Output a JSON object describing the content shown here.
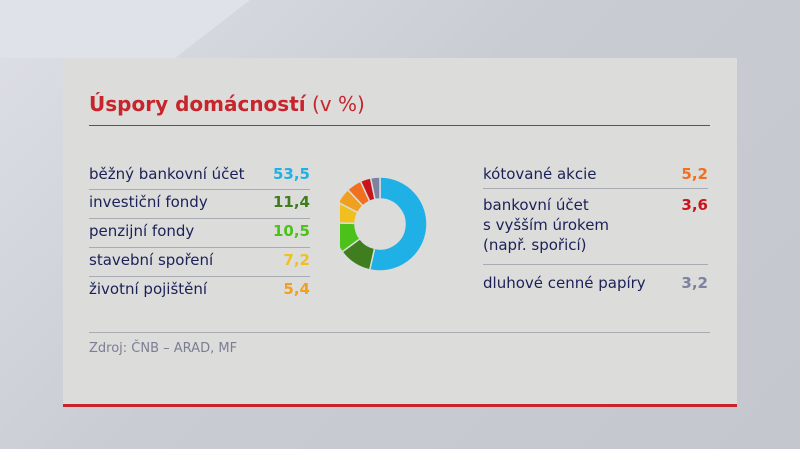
{
  "title": {
    "bold": "Úspory domácností",
    "unit": "(v %)"
  },
  "source": "Zdroj: ČNB – ARAD, MF",
  "left_items": [
    {
      "label": "běžný bankovní účet",
      "value": "53,5",
      "color": "#1fb0e6"
    },
    {
      "label": "investiční fondy",
      "value": "11,4",
      "color": "#3f7d1e"
    },
    {
      "label": "penzijní fondy",
      "value": "10,5",
      "color": "#4cc11a"
    },
    {
      "label": "stavební spoření",
      "value": "7,2",
      "color": "#f0c020"
    },
    {
      "label": "životní pojištění",
      "value": "5,4",
      "color": "#f0a020"
    }
  ],
  "right_items": [
    {
      "label": "kótované akcie",
      "value": "5,2",
      "color": "#f07020"
    },
    {
      "label_lines": [
        "bankovní účet",
        "s vyšším úrokem",
        "(např. spořicí)"
      ],
      "value": "3,6",
      "color": "#c8151b"
    },
    {
      "label": "dluhové cenné papíry",
      "value": "3,2",
      "color": "#7c82a0"
    }
  ],
  "chart_data": {
    "type": "pie",
    "title": "Úspory domácností (v %)",
    "categories": [
      "běžný bankovní účet",
      "investiční fondy",
      "penzijní fondy",
      "stavební spoření",
      "životní pojištění",
      "kótované akcie",
      "bankovní účet s vyšším úrokem (např. spořicí)",
      "dluhové cenné papíry"
    ],
    "values": [
      53.5,
      11.4,
      10.5,
      7.2,
      5.4,
      5.2,
      3.6,
      3.2
    ],
    "colors": [
      "#1fb0e6",
      "#3f7d1e",
      "#4cc11a",
      "#f0c020",
      "#f0a020",
      "#f07020",
      "#c8151b",
      "#7c82a0"
    ],
    "donut": true,
    "source": "Zdroj: ČNB – ARAD, MF"
  }
}
